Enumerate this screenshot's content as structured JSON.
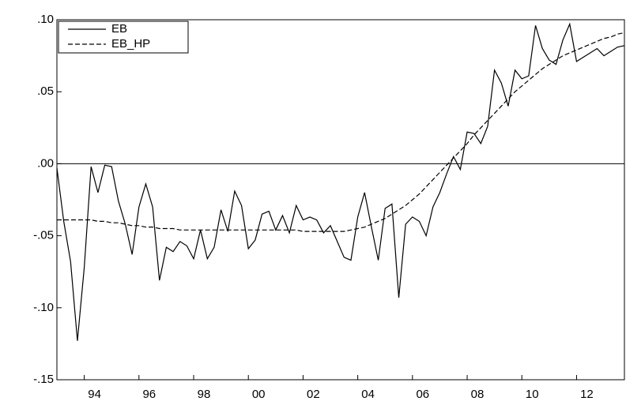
{
  "chart_data": {
    "type": "line",
    "x": [
      1993,
      1993.25,
      1993.5,
      1993.75,
      1994,
      1994.25,
      1994.5,
      1994.75,
      1995,
      1995.25,
      1995.5,
      1995.75,
      1996,
      1996.25,
      1996.5,
      1996.75,
      1997,
      1997.25,
      1997.5,
      1997.75,
      1998,
      1998.25,
      1998.5,
      1998.75,
      1999,
      1999.25,
      1999.5,
      1999.75,
      2000,
      2000.25,
      2000.5,
      2000.75,
      2001,
      2001.25,
      2001.5,
      2001.75,
      2002,
      2002.25,
      2002.5,
      2002.75,
      2003,
      2003.25,
      2003.5,
      2003.75,
      2004,
      2004.25,
      2004.5,
      2004.75,
      2005,
      2005.25,
      2005.5,
      2005.75,
      2006,
      2006.25,
      2006.5,
      2006.75,
      2007,
      2007.25,
      2007.5,
      2007.75,
      2008,
      2008.25,
      2008.5,
      2008.75,
      2009,
      2009.25,
      2009.5,
      2009.75,
      2010,
      2010.25,
      2010.5,
      2010.75,
      2011,
      2011.25,
      2011.5,
      2011.75,
      2012,
      2012.25,
      2012.5,
      2012.75,
      2013,
      2013.25,
      2013.5,
      2013.75
    ],
    "series": [
      {
        "name": "EB",
        "color": "#000000",
        "linestyle": "solid",
        "values": [
          -0.003,
          -0.04,
          -0.068,
          -0.123,
          -0.072,
          -0.002,
          -0.02,
          -0.001,
          -0.002,
          -0.026,
          -0.042,
          -0.063,
          -0.03,
          -0.014,
          -0.03,
          -0.081,
          -0.058,
          -0.061,
          -0.054,
          -0.057,
          -0.066,
          -0.046,
          -0.066,
          -0.058,
          -0.032,
          -0.047,
          -0.019,
          -0.029,
          -0.059,
          -0.053,
          -0.035,
          -0.033,
          -0.046,
          -0.036,
          -0.048,
          -0.029,
          -0.039,
          -0.037,
          -0.039,
          -0.048,
          -0.043,
          -0.054,
          -0.065,
          -0.067,
          -0.037,
          -0.02,
          -0.044,
          -0.067,
          -0.031,
          -0.028,
          -0.093,
          -0.042,
          -0.037,
          -0.04,
          -0.05,
          -0.03,
          -0.02,
          -0.007,
          0.005,
          -0.004,
          0.022,
          0.021,
          0.014,
          0.026,
          0.065,
          0.056,
          0.04,
          0.065,
          0.059,
          0.061,
          0.096,
          0.08,
          0.072,
          0.069,
          0.086,
          0.097,
          0.071,
          0.074,
          0.077,
          0.08,
          0.075,
          0.078,
          0.081,
          0.082
        ]
      },
      {
        "name": "EB_HP",
        "color": "#000000",
        "linestyle": "dashed",
        "values": [
          -0.039,
          -0.039,
          -0.039,
          -0.039,
          -0.039,
          -0.039,
          -0.04,
          -0.04,
          -0.041,
          -0.041,
          -0.042,
          -0.043,
          -0.043,
          -0.044,
          -0.044,
          -0.045,
          -0.045,
          -0.045,
          -0.046,
          -0.046,
          -0.046,
          -0.046,
          -0.046,
          -0.046,
          -0.046,
          -0.046,
          -0.046,
          -0.046,
          -0.046,
          -0.046,
          -0.046,
          -0.046,
          -0.046,
          -0.046,
          -0.046,
          -0.046,
          -0.047,
          -0.047,
          -0.047,
          -0.047,
          -0.047,
          -0.047,
          -0.047,
          -0.046,
          -0.045,
          -0.044,
          -0.042,
          -0.04,
          -0.038,
          -0.035,
          -0.032,
          -0.029,
          -0.025,
          -0.021,
          -0.016,
          -0.011,
          -0.006,
          -0.001,
          0.004,
          0.009,
          0.014,
          0.02,
          0.025,
          0.03,
          0.035,
          0.04,
          0.045,
          0.05,
          0.054,
          0.058,
          0.062,
          0.066,
          0.069,
          0.072,
          0.075,
          0.077,
          0.079,
          0.081,
          0.083,
          0.085,
          0.087,
          0.088,
          0.09,
          0.091
        ]
      }
    ],
    "xlim": [
      1993,
      2013.75
    ],
    "xticks": [
      {
        "value": 1994,
        "label": "94"
      },
      {
        "value": 1996,
        "label": "96"
      },
      {
        "value": 1998,
        "label": "98"
      },
      {
        "value": 2000,
        "label": "00"
      },
      {
        "value": 2002,
        "label": "02"
      },
      {
        "value": 2004,
        "label": "04"
      },
      {
        "value": 2006,
        "label": "06"
      },
      {
        "value": 2008,
        "label": "08"
      },
      {
        "value": 2010,
        "label": "10"
      },
      {
        "value": 2012,
        "label": "12"
      }
    ],
    "ylim": [
      -0.15,
      0.1
    ],
    "yticks": [
      {
        "value": -0.15,
        "label": "-.15"
      },
      {
        "value": -0.1,
        "label": "-.10"
      },
      {
        "value": -0.05,
        "label": "-.05"
      },
      {
        "value": 0,
        "label": ".00"
      },
      {
        "value": 0.05,
        "label": ".05"
      },
      {
        "value": 0.1,
        "label": ".10"
      }
    ],
    "zero_line": true,
    "legend": "top-left"
  }
}
